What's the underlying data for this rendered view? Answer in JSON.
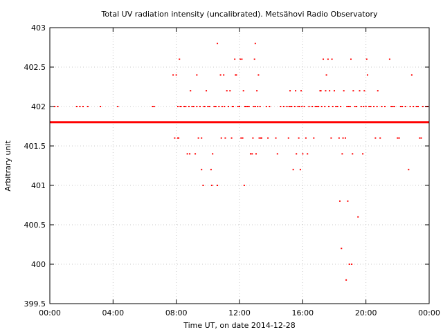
{
  "chart_data": {
    "type": "scatter",
    "title": "Total UV radiation intensity (uncalibrated). Metsähovi Radio Observatory",
    "xlabel": "Time UT, on date 2014-12-28",
    "ylabel": "Arbitrary unit",
    "x_unit": "hours UT",
    "xlim": [
      0,
      24
    ],
    "ylim": [
      399.5,
      403
    ],
    "x_ticks": [
      {
        "value": 0,
        "label": "00:00"
      },
      {
        "value": 4,
        "label": "04:00"
      },
      {
        "value": 8,
        "label": "08:00"
      },
      {
        "value": 12,
        "label": "12:00"
      },
      {
        "value": 16,
        "label": "16:00"
      },
      {
        "value": 20,
        "label": "20:00"
      },
      {
        "value": 24,
        "label": "00:00"
      }
    ],
    "y_ticks": [
      {
        "value": 399.5,
        "label": "399.5"
      },
      {
        "value": 400,
        "label": "400"
      },
      {
        "value": 400.5,
        "label": "400.5"
      },
      {
        "value": 401,
        "label": "401"
      },
      {
        "value": 401.5,
        "label": "401.5"
      },
      {
        "value": 402,
        "label": "402"
      },
      {
        "value": 402.5,
        "label": "402.5"
      },
      {
        "value": 403,
        "label": "403"
      }
    ],
    "grid": true,
    "legend": false,
    "color": "#ff0000",
    "baseline": {
      "value": 401.8,
      "x_start": 0,
      "x_end": 24
    },
    "series": [
      {
        "points": [
          [
            0.3,
            402
          ],
          [
            0.5,
            402
          ],
          [
            1.7,
            402
          ],
          [
            1.9,
            402
          ],
          [
            2.1,
            402
          ],
          [
            2.4,
            402
          ],
          [
            3.2,
            402
          ],
          [
            4.3,
            402
          ],
          [
            6.5,
            402
          ],
          [
            6.6,
            402
          ],
          [
            7.8,
            402.4
          ],
          [
            7.9,
            401.6
          ],
          [
            8.0,
            402.4
          ],
          [
            8.1,
            401.6
          ],
          [
            8.1,
            402
          ],
          [
            8.15,
            401.6
          ],
          [
            8.2,
            402.6
          ],
          [
            8.25,
            402
          ],
          [
            8.3,
            402
          ],
          [
            8.5,
            402
          ],
          [
            8.6,
            402
          ],
          [
            8.7,
            401.4
          ],
          [
            8.8,
            402
          ],
          [
            8.85,
            401.4
          ],
          [
            8.9,
            402.2
          ],
          [
            9.0,
            402
          ],
          [
            9.1,
            402
          ],
          [
            9.2,
            401.4
          ],
          [
            9.3,
            402.4
          ],
          [
            9.3,
            402
          ],
          [
            9.4,
            401.6
          ],
          [
            9.5,
            402
          ],
          [
            9.6,
            401.6
          ],
          [
            9.6,
            401.2
          ],
          [
            9.7,
            401
          ],
          [
            9.75,
            402
          ],
          [
            9.8,
            402
          ],
          [
            9.9,
            402.2
          ],
          [
            10.0,
            402
          ],
          [
            10.1,
            402
          ],
          [
            10.2,
            401.2
          ],
          [
            10.25,
            401
          ],
          [
            10.3,
            401.4
          ],
          [
            10.4,
            402
          ],
          [
            10.5,
            402
          ],
          [
            10.6,
            401
          ],
          [
            10.6,
            402.8
          ],
          [
            10.7,
            402
          ],
          [
            10.8,
            402.4
          ],
          [
            10.85,
            401.6
          ],
          [
            10.9,
            402
          ],
          [
            11.0,
            402.4
          ],
          [
            11.05,
            402
          ],
          [
            11.1,
            401.6
          ],
          [
            11.2,
            402.2
          ],
          [
            11.3,
            402
          ],
          [
            11.4,
            402.2
          ],
          [
            11.5,
            401.6
          ],
          [
            11.55,
            402
          ],
          [
            11.6,
            402
          ],
          [
            11.7,
            402.6
          ],
          [
            11.75,
            402.4
          ],
          [
            11.8,
            402.4
          ],
          [
            11.9,
            402
          ],
          [
            12.0,
            402
          ],
          [
            12.05,
            402.6
          ],
          [
            12.1,
            401.6
          ],
          [
            12.15,
            402.6
          ],
          [
            12.2,
            401.6
          ],
          [
            12.25,
            402.2
          ],
          [
            12.3,
            401
          ],
          [
            12.35,
            402
          ],
          [
            12.4,
            402
          ],
          [
            12.5,
            402
          ],
          [
            12.6,
            402
          ],
          [
            12.7,
            401.4
          ],
          [
            12.8,
            401.4
          ],
          [
            12.85,
            401.6
          ],
          [
            12.9,
            402
          ],
          [
            12.95,
            402.6
          ],
          [
            13.0,
            402.8
          ],
          [
            13.0,
            402
          ],
          [
            13.05,
            401.4
          ],
          [
            13.1,
            402.2
          ],
          [
            13.15,
            402
          ],
          [
            13.2,
            402.4
          ],
          [
            13.25,
            401.6
          ],
          [
            13.3,
            402
          ],
          [
            13.35,
            401.6
          ],
          [
            13.4,
            401.6
          ],
          [
            13.7,
            402
          ],
          [
            13.8,
            401.6
          ],
          [
            13.9,
            402
          ],
          [
            14.3,
            401.6
          ],
          [
            14.4,
            401.4
          ],
          [
            14.6,
            402
          ],
          [
            14.8,
            402
          ],
          [
            15.0,
            402
          ],
          [
            15.1,
            401.6
          ],
          [
            15.15,
            402
          ],
          [
            15.2,
            402.2
          ],
          [
            15.25,
            402
          ],
          [
            15.3,
            402
          ],
          [
            15.4,
            401.2
          ],
          [
            15.5,
            402
          ],
          [
            15.55,
            402.2
          ],
          [
            15.6,
            401.4
          ],
          [
            15.7,
            402
          ],
          [
            15.75,
            401.6
          ],
          [
            15.8,
            402
          ],
          [
            15.85,
            401.2
          ],
          [
            15.9,
            402.2
          ],
          [
            15.95,
            402
          ],
          [
            16.0,
            401.4
          ],
          [
            16.1,
            402
          ],
          [
            16.2,
            401.6
          ],
          [
            16.3,
            401.4
          ],
          [
            16.4,
            402
          ],
          [
            16.6,
            402
          ],
          [
            16.7,
            401.6
          ],
          [
            16.8,
            402
          ],
          [
            16.9,
            402
          ],
          [
            17.0,
            402
          ],
          [
            17.1,
            402.2
          ],
          [
            17.15,
            402.2
          ],
          [
            17.2,
            402
          ],
          [
            17.3,
            402.6
          ],
          [
            17.4,
            402
          ],
          [
            17.45,
            402.2
          ],
          [
            17.5,
            402.4
          ],
          [
            17.6,
            402.6
          ],
          [
            17.65,
            402
          ],
          [
            17.7,
            402.2
          ],
          [
            17.8,
            401.6
          ],
          [
            17.85,
            402.6
          ],
          [
            17.9,
            402
          ],
          [
            18.0,
            402.2
          ],
          [
            18.1,
            402
          ],
          [
            18.2,
            402
          ],
          [
            18.3,
            401.6
          ],
          [
            18.35,
            400.8
          ],
          [
            18.4,
            402
          ],
          [
            18.45,
            400.2
          ],
          [
            18.5,
            401.4
          ],
          [
            18.55,
            401.6
          ],
          [
            18.6,
            402.2
          ],
          [
            18.7,
            401.6
          ],
          [
            18.75,
            399.8
          ],
          [
            18.8,
            402
          ],
          [
            18.85,
            400.8
          ],
          [
            18.9,
            402
          ],
          [
            18.95,
            400
          ],
          [
            19.0,
            402
          ],
          [
            19.05,
            402.6
          ],
          [
            19.1,
            400
          ],
          [
            19.15,
            401.4
          ],
          [
            19.2,
            402.2
          ],
          [
            19.3,
            402
          ],
          [
            19.4,
            402
          ],
          [
            19.5,
            400.6
          ],
          [
            19.6,
            402.2
          ],
          [
            19.7,
            402
          ],
          [
            19.8,
            401.4
          ],
          [
            19.85,
            402
          ],
          [
            19.9,
            402.2
          ],
          [
            20.0,
            402
          ],
          [
            20.05,
            402.6
          ],
          [
            20.1,
            402.4
          ],
          [
            20.2,
            402
          ],
          [
            20.3,
            402
          ],
          [
            20.5,
            402
          ],
          [
            20.6,
            401.6
          ],
          [
            20.7,
            402
          ],
          [
            20.75,
            402.2
          ],
          [
            20.9,
            401.6
          ],
          [
            21.0,
            402
          ],
          [
            21.2,
            402
          ],
          [
            21.5,
            402.6
          ],
          [
            21.6,
            402
          ],
          [
            21.7,
            402
          ],
          [
            21.8,
            402
          ],
          [
            22.0,
            401.6
          ],
          [
            22.1,
            401.6
          ],
          [
            22.2,
            402
          ],
          [
            22.3,
            402
          ],
          [
            22.5,
            402
          ],
          [
            22.7,
            401.2
          ],
          [
            22.8,
            402
          ],
          [
            22.9,
            402.4
          ],
          [
            23.0,
            402
          ],
          [
            23.2,
            402
          ],
          [
            23.3,
            402
          ],
          [
            23.4,
            401.6
          ],
          [
            23.5,
            401.6
          ],
          [
            23.6,
            402
          ],
          [
            23.8,
            402
          ],
          [
            23.9,
            402
          ]
        ]
      }
    ]
  }
}
